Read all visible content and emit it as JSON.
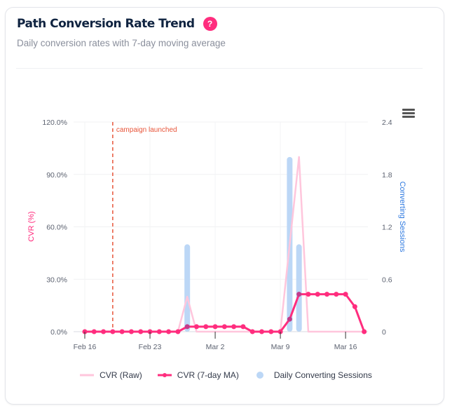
{
  "card": {
    "title": "Path Conversion Rate Trend",
    "help_icon": "?",
    "subtitle": "Daily conversion rates with 7-day moving average"
  },
  "colors": {
    "raw": "#ffc6dc",
    "ma": "#ff2d7e",
    "sessions": "#bcd7f6",
    "annotation": "#e8553a",
    "left_axis_title": "#ff2d7e",
    "right_axis_title": "#2f7ae0"
  },
  "chart_data": {
    "type": "line",
    "title": "Path Conversion Rate Trend",
    "x": [
      "Feb 16",
      "Feb 17",
      "Feb 18",
      "Feb 19",
      "Feb 20",
      "Feb 21",
      "Feb 22",
      "Feb 23",
      "Feb 24",
      "Feb 25",
      "Feb 26",
      "Feb 27",
      "Feb 28",
      "Mar 1",
      "Mar 2",
      "Mar 3",
      "Mar 4",
      "Mar 5",
      "Mar 6",
      "Mar 7",
      "Mar 8",
      "Mar 9",
      "Mar 10",
      "Mar 11",
      "Mar 12",
      "Mar 13",
      "Mar 14",
      "Mar 15",
      "Mar 16",
      "Mar 17",
      "Mar 18"
    ],
    "x_ticks": [
      "Feb 16",
      "Feb 23",
      "Mar 2",
      "Mar 9",
      "Mar 16"
    ],
    "x_tick_index": [
      0,
      7,
      14,
      21,
      28
    ],
    "series": [
      {
        "name": "CVR (Raw)",
        "axis": "left",
        "type": "line",
        "values": [
          0,
          0,
          0,
          0,
          0,
          0,
          0,
          0,
          0,
          0,
          0,
          20,
          0,
          0,
          0,
          0,
          0,
          0,
          0,
          0,
          0,
          0,
          50,
          100,
          0,
          0,
          0,
          0,
          0,
          0,
          0
        ]
      },
      {
        "name": "CVR (7-day MA)",
        "axis": "left",
        "type": "line-markers",
        "values": [
          0,
          0,
          0,
          0,
          0,
          0,
          0,
          0,
          0,
          0,
          0,
          2.86,
          2.86,
          2.86,
          2.86,
          2.86,
          2.86,
          2.86,
          0,
          0,
          0,
          0,
          7.14,
          21.43,
          21.43,
          21.43,
          21.43,
          21.43,
          21.43,
          14.29,
          0
        ]
      },
      {
        "name": "Daily Converting Sessions",
        "axis": "right",
        "type": "bar",
        "values": [
          0,
          0,
          0,
          0,
          0,
          0,
          0,
          0,
          0,
          0,
          0,
          1,
          0,
          0,
          0,
          0,
          0,
          0,
          0,
          0,
          0,
          0,
          2,
          1,
          0,
          0,
          0,
          0,
          0,
          0,
          0
        ]
      }
    ],
    "y_left": {
      "label": "CVR (%)",
      "ylim": [
        0,
        120
      ],
      "ticks": [
        0,
        30,
        60,
        90,
        120
      ],
      "tick_labels": [
        "0.0%",
        "30.0%",
        "60.0%",
        "90.0%",
        "120.0%"
      ]
    },
    "y_right": {
      "label": "Converting Sessions",
      "ylim": [
        0,
        2.4
      ],
      "ticks": [
        0,
        0.6,
        1.2,
        1.8,
        2.4
      ],
      "tick_labels": [
        "0",
        "0.6",
        "1.2",
        "1.8",
        "2.4"
      ]
    },
    "annotations": [
      {
        "x": "Feb 19",
        "type": "vertical-dashed-line",
        "text": "campaign launched"
      }
    ],
    "grid": true,
    "legend": {
      "position": "bottom",
      "entries": [
        "CVR (Raw)",
        "CVR (7-day MA)",
        "Daily Converting Sessions"
      ]
    }
  }
}
